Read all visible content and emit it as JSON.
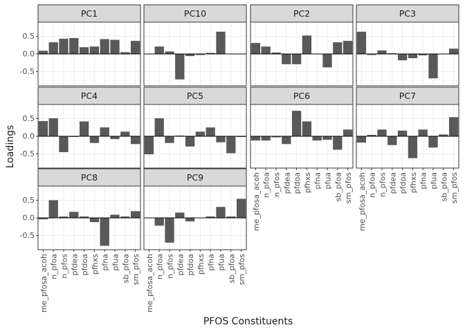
{
  "chart_data": {
    "type": "bar",
    "xlabel": "PFOS Constituents",
    "ylabel": "Loadings",
    "ylim": [
      -0.9,
      0.9
    ],
    "yticks": [
      -0.5,
      0.0,
      0.5
    ],
    "ytick_labels": [
      "-0.5",
      "0.0",
      "0.5"
    ],
    "categories": [
      "me_pfosa_acoh",
      "n_pfoa",
      "n_pfos",
      "pfdea",
      "pfdoa",
      "pfhxs",
      "pfna",
      "pfua",
      "sb_pfoa",
      "sm_pfos"
    ],
    "bar_color": "#595959",
    "panels": [
      {
        "name": "PC1",
        "values": [
          0.09,
          0.33,
          0.43,
          0.45,
          0.19,
          0.21,
          0.42,
          0.4,
          0.05,
          0.37
        ]
      },
      {
        "name": "PC10",
        "values": [
          0.0,
          0.21,
          0.07,
          -0.72,
          -0.06,
          -0.03,
          0.03,
          0.63,
          0.0,
          0.0
        ]
      },
      {
        "name": "PC2",
        "values": [
          0.31,
          0.21,
          0.04,
          -0.29,
          -0.29,
          0.52,
          0.0,
          -0.38,
          0.33,
          0.37
        ]
      },
      {
        "name": "PC3",
        "values": [
          0.63,
          -0.03,
          0.1,
          0.02,
          -0.18,
          -0.12,
          -0.04,
          -0.69,
          0.0,
          0.15
        ]
      },
      {
        "name": "PC4",
        "values": [
          0.43,
          0.51,
          -0.45,
          -0.02,
          0.42,
          -0.19,
          0.25,
          -0.08,
          0.13,
          -0.22
        ]
      },
      {
        "name": "PC5",
        "values": [
          -0.51,
          0.51,
          -0.19,
          0.02,
          -0.29,
          0.13,
          0.25,
          -0.17,
          -0.48,
          -0.02
        ]
      },
      {
        "name": "PC6",
        "values": [
          -0.12,
          -0.12,
          -0.03,
          -0.22,
          0.72,
          0.42,
          -0.12,
          -0.1,
          -0.38,
          0.19
        ]
      },
      {
        "name": "PC7",
        "values": [
          -0.18,
          0.04,
          0.19,
          -0.25,
          0.16,
          -0.62,
          0.19,
          -0.32,
          0.05,
          0.54
        ]
      },
      {
        "name": "PC8",
        "values": [
          -0.04,
          0.5,
          0.04,
          0.17,
          0.04,
          -0.12,
          -0.79,
          0.09,
          0.04,
          0.19
        ]
      },
      {
        "name": "PC9",
        "values": [
          0.0,
          -0.22,
          -0.7,
          0.15,
          -0.1,
          0.0,
          0.04,
          0.31,
          0.04,
          0.54
        ]
      }
    ],
    "legend": "none",
    "grid": true
  }
}
